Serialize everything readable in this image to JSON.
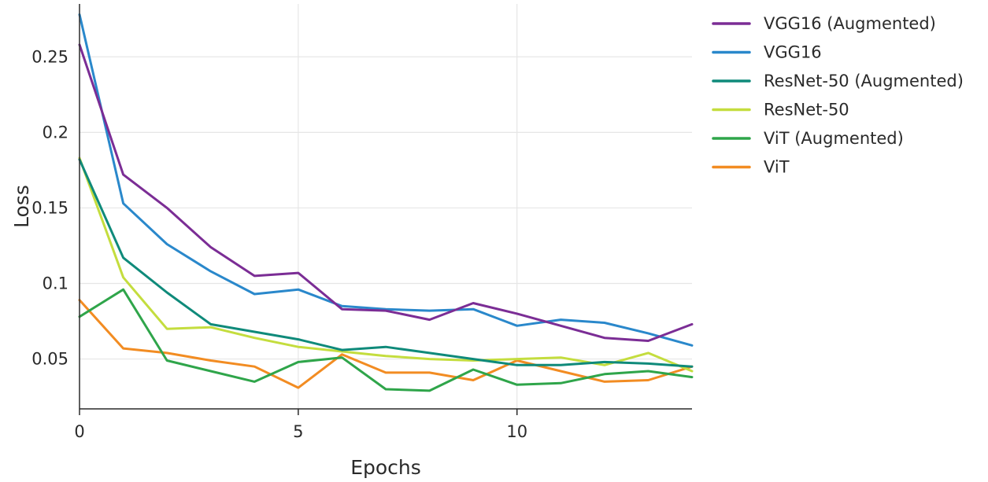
{
  "chart_data": {
    "type": "line",
    "title": "",
    "xlabel": "Epochs",
    "ylabel": "Loss",
    "xlim": [
      0,
      14
    ],
    "ylim": [
      0.017,
      0.285
    ],
    "x": [
      0,
      1,
      2,
      3,
      4,
      5,
      6,
      7,
      8,
      9,
      10,
      11,
      12,
      13,
      14
    ],
    "x_ticks": [
      0,
      5,
      10
    ],
    "x_tick_labels": [
      "0",
      "5",
      "10"
    ],
    "y_ticks": [
      0.05,
      0.1,
      0.15,
      0.2,
      0.25
    ],
    "y_tick_labels": [
      "0.05",
      "0.1",
      "0.15",
      "0.2",
      "0.25"
    ],
    "grid": true,
    "legend_position": "right",
    "series": [
      {
        "name": "VGG16 (Augmented)",
        "color": "#7b2d95",
        "values": [
          0.258,
          0.172,
          0.15,
          0.124,
          0.105,
          0.107,
          0.083,
          0.082,
          0.076,
          0.087,
          0.08,
          0.072,
          0.064,
          0.062,
          0.073
        ]
      },
      {
        "name": "VGG16",
        "color": "#2a88cb",
        "values": [
          0.278,
          0.153,
          0.126,
          0.108,
          0.093,
          0.096,
          0.085,
          0.083,
          0.082,
          0.083,
          0.072,
          0.076,
          0.074,
          0.067,
          0.059
        ]
      },
      {
        "name": "ResNet-50 (Augmented)",
        "color": "#0f8a7a",
        "values": [
          0.182,
          0.117,
          0.094,
          0.073,
          0.068,
          0.063,
          0.056,
          0.058,
          0.054,
          0.05,
          0.046,
          0.046,
          0.048,
          0.047,
          0.045
        ]
      },
      {
        "name": "ResNet-50",
        "color": "#c4dd3e",
        "values": [
          0.183,
          0.104,
          0.07,
          0.071,
          0.064,
          0.058,
          0.055,
          0.052,
          0.05,
          0.049,
          0.05,
          0.051,
          0.046,
          0.054,
          0.042
        ]
      },
      {
        "name": "ViT (Augmented)",
        "color": "#2fa54a",
        "values": [
          0.078,
          0.096,
          0.049,
          0.042,
          0.035,
          0.048,
          0.051,
          0.03,
          0.029,
          0.043,
          0.033,
          0.034,
          0.04,
          0.042,
          0.038
        ]
      },
      {
        "name": "ViT",
        "color": "#f28c22",
        "values": [
          0.089,
          0.057,
          0.054,
          0.049,
          0.045,
          0.031,
          0.053,
          0.041,
          0.041,
          0.036,
          0.049,
          0.042,
          0.035,
          0.036,
          0.045
        ]
      }
    ]
  }
}
